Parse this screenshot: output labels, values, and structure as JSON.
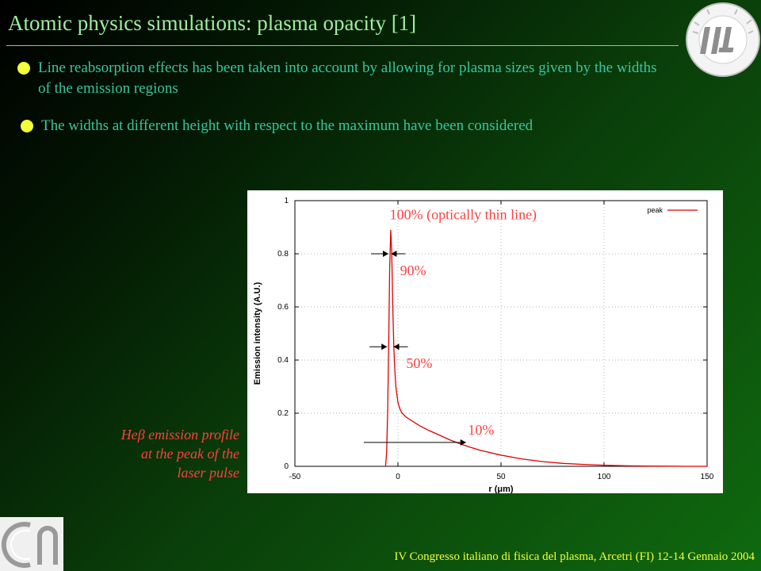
{
  "slide": {
    "title": "Atomic physics simulations: plasma opacity [1]",
    "bullets": [
      "Line reabsorption effects has been taken into account by allowing for plasma sizes given by the widths of the emission regions",
      "The widths at different height with respect to the maximum have been considered"
    ],
    "caption": {
      "prefix": "He",
      "symbol": "β",
      "line1_rest": " emission profile",
      "line2": "at the peak of the",
      "line3": "laser pulse"
    },
    "footer": "IV Congresso italiano di fisica del plasma, Arcetri (FI) 12-14 Gennaio 2004",
    "colors": {
      "title": "#9df09d",
      "bullet_text": "#35c7a0",
      "bullet_dot": "#f2ff3a",
      "annotation": "#ff4040",
      "curve": "#e00000",
      "footer": "#f2ff3a"
    },
    "logo_icon": "ilil-laser-lab-logo",
    "footer_logo_icon": "cnr-logo"
  },
  "chart_data": {
    "type": "line",
    "xlabel": "r (μm)",
    "ylabel": "Emission intensity (A.U.)",
    "xlim": [
      -50,
      150
    ],
    "ylim": [
      0,
      1
    ],
    "xticks": [
      -50,
      0,
      50,
      100,
      150
    ],
    "yticks": [
      0,
      0.2,
      0.4,
      0.6,
      0.8,
      1
    ],
    "ytick_labels": [
      "0",
      "0.2",
      "0.4",
      "0.6",
      "0.8",
      "1"
    ],
    "grid": true,
    "legend": "top-right",
    "series": [
      {
        "name": "peak",
        "x": [
          -6,
          -5.5,
          -5,
          -4.5,
          -4,
          -3.5,
          -3,
          -2.5,
          -2,
          -1.5,
          -1,
          0,
          1,
          2,
          4,
          6,
          8,
          10,
          15,
          20,
          25,
          30,
          35,
          40,
          50,
          60,
          70,
          80,
          90,
          100,
          110,
          120,
          130,
          140,
          150
        ],
        "y": [
          0.0,
          0.05,
          0.2,
          0.45,
          0.75,
          0.89,
          0.8,
          0.6,
          0.45,
          0.36,
          0.3,
          0.24,
          0.215,
          0.2,
          0.185,
          0.175,
          0.165,
          0.155,
          0.135,
          0.118,
          0.1,
          0.085,
          0.072,
          0.06,
          0.042,
          0.028,
          0.018,
          0.011,
          0.007,
          0.004,
          0.002,
          0.001,
          0.0005,
          0.0,
          0.0
        ]
      }
    ],
    "annotations": [
      {
        "text": "100% (optically thin line)",
        "x": -4,
        "y": 0.93
      },
      {
        "text": "90%",
        "x": 1,
        "y": 0.72
      },
      {
        "text": "50%",
        "x": 4,
        "y": 0.37
      },
      {
        "text": "10%",
        "x": 34,
        "y": 0.12
      }
    ],
    "width_markers": [
      {
        "level": "90%",
        "x1": -4.6,
        "x2": -3.3,
        "y": 0.8
      },
      {
        "level": "50%",
        "x1": -5.3,
        "x2": -2.1,
        "y": 0.45
      },
      {
        "level": "10%",
        "x1": -5.8,
        "x2": 33,
        "y": 0.09
      }
    ]
  }
}
